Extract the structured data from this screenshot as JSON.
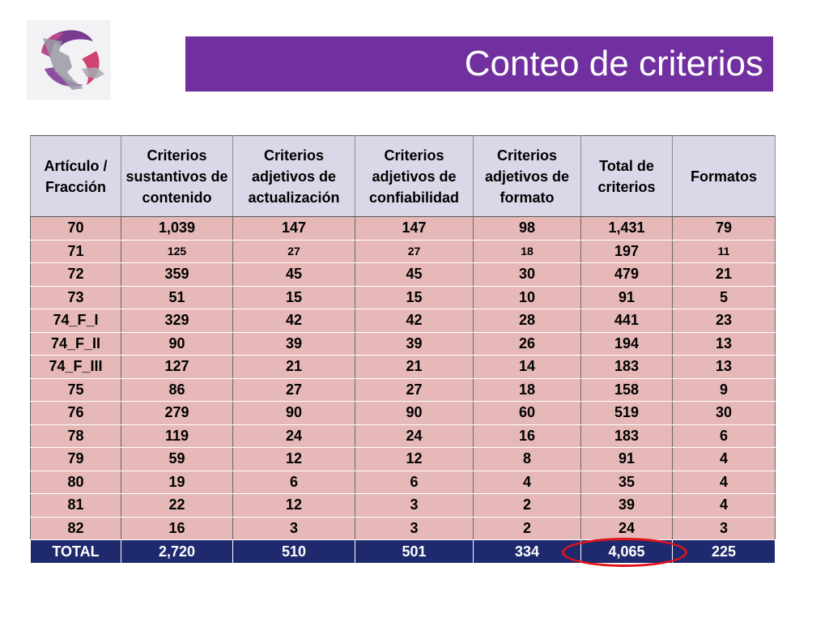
{
  "title": "Conteo de criterios",
  "headers": [
    "Artículo / Fracción",
    "Criterios sustantivos de contenido",
    "Criterios adjetivos de actualización",
    "Criterios adjetivos de confiabilidad",
    "Criterios adjetivos de formato",
    "Total de criterios",
    "Formatos"
  ],
  "rows": [
    [
      "70",
      "1,039",
      "147",
      "147",
      "98",
      "1,431",
      "79"
    ],
    [
      "71",
      "125",
      "27",
      "27",
      "18",
      "197",
      "11"
    ],
    [
      "72",
      "359",
      "45",
      "45",
      "30",
      "479",
      "21"
    ],
    [
      "73",
      "51",
      "15",
      "15",
      "10",
      "91",
      "5"
    ],
    [
      "74_F_I",
      "329",
      "42",
      "42",
      "28",
      "441",
      "23"
    ],
    [
      "74_F_II",
      "90",
      "39",
      "39",
      "26",
      "194",
      "13"
    ],
    [
      "74_F_III",
      "127",
      "21",
      "21",
      "14",
      "183",
      "13"
    ],
    [
      "75",
      "86",
      "27",
      "27",
      "18",
      "158",
      "9"
    ],
    [
      "76",
      "279",
      "90",
      "90",
      "60",
      "519",
      "30"
    ],
    [
      "78",
      "119",
      "24",
      "24",
      "16",
      "183",
      "6"
    ],
    [
      "79",
      "59",
      "12",
      "12",
      "8",
      "91",
      "4"
    ],
    [
      "80",
      "19",
      "6",
      "6",
      "4",
      "35",
      "4"
    ],
    [
      "81",
      "22",
      "12",
      "3",
      "2",
      "39",
      "4"
    ],
    [
      "82",
      "16",
      "3",
      "3",
      "2",
      "24",
      "3"
    ]
  ],
  "total": [
    "TOTAL",
    "2,720",
    "510",
    "501",
    "334",
    "4,065",
    "225"
  ],
  "colors": {
    "title_bar": "#7030a0",
    "header_fill": "#dbd7e8",
    "row_fill": "#e6b9b8",
    "total_fill": "#1f2a6e",
    "highlight_ellipse": "#e0141b"
  }
}
